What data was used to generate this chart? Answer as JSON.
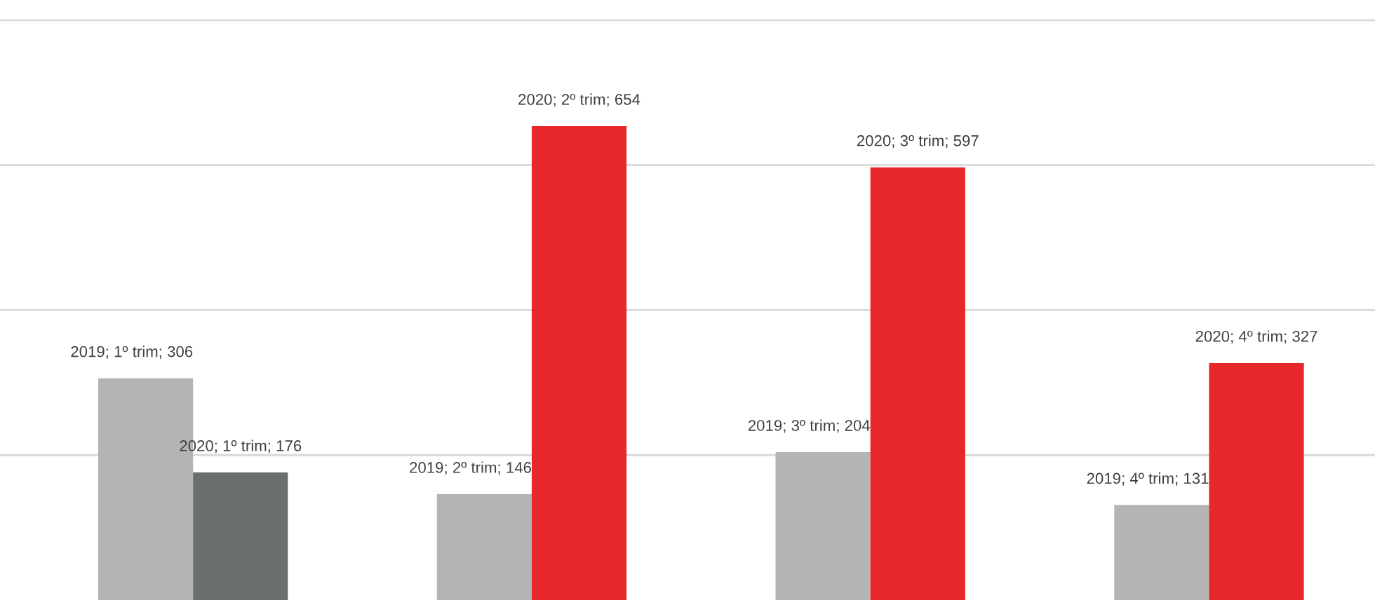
{
  "chart_data": {
    "type": "bar",
    "categories": [
      null,
      null,
      null,
      null
    ],
    "series": [
      {
        "color": "#b4b4b4",
        "values": [
          306,
          146,
          204,
          131
        ],
        "value_labels": [
          "2019; 1º trim; 306",
          "2019; 2º trim; 146",
          "2019; 3º trim; 204",
          "2019; 4º trim; 131"
        ]
      },
      {
        "colors": [
          "#6b6e6f",
          "#e8272a",
          "#e8272a",
          "#e8272a"
        ],
        "values": [
          176,
          654,
          597,
          327
        ],
        "value_labels": [
          "2020; 1º trim; 176",
          "2020; 2º trim; 654",
          "2020; 3º trim; 597",
          "2020; 4º trim; 327"
        ]
      }
    ],
    "ylim": [
      0,
      828
    ],
    "yticks": [
      {
        "value": 200,
        "label": null
      },
      {
        "value": 400,
        "label": null
      },
      {
        "value": 600,
        "label": null
      },
      {
        "value": 800,
        "label": null
      }
    ],
    "grid": "y",
    "legend": false
  }
}
